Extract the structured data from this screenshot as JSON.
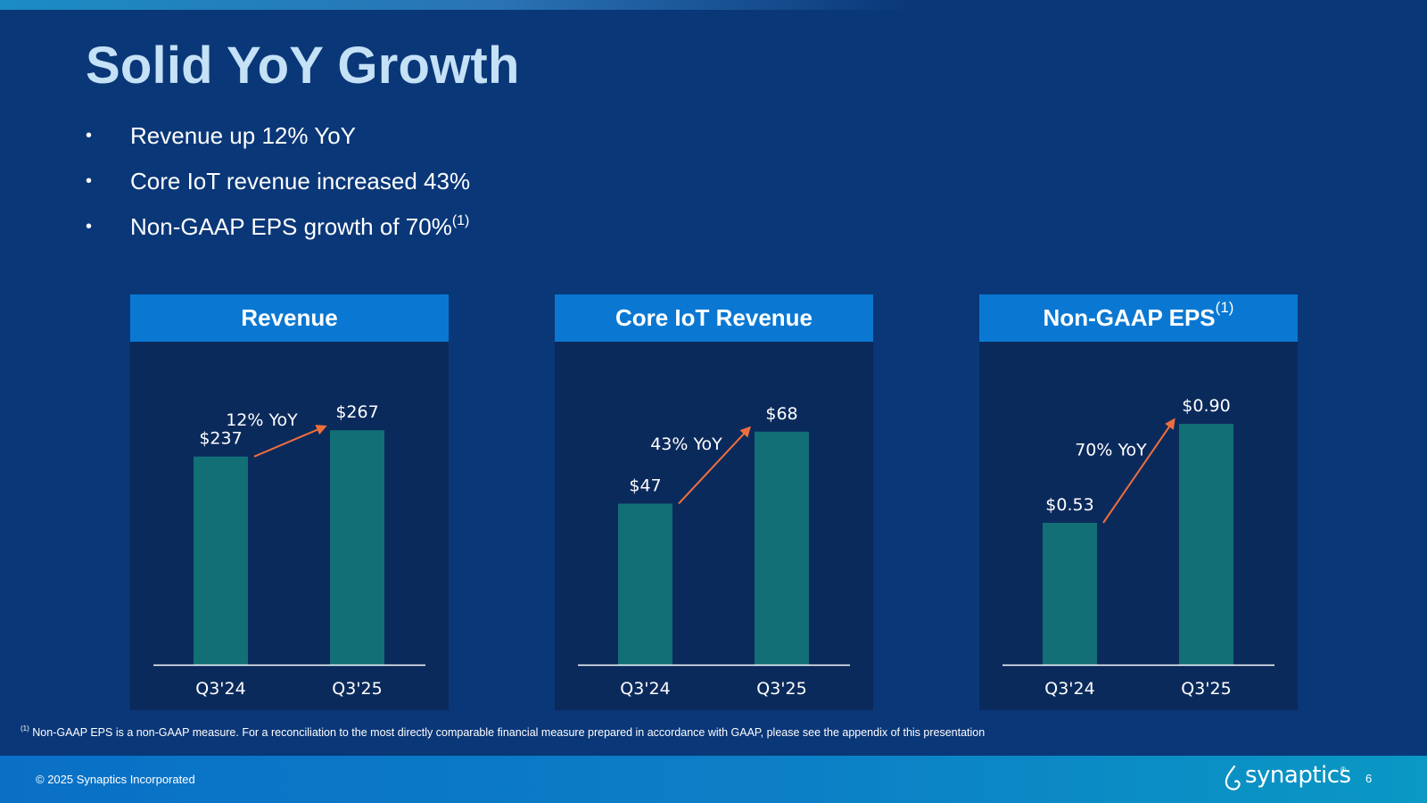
{
  "title": "Solid YoY Growth",
  "bullets": [
    {
      "text": "Revenue up 12% YoY",
      "sup": ""
    },
    {
      "text": "Core IoT revenue increased 43%",
      "sup": ""
    },
    {
      "text": "Non-GAAP EPS growth of 70%",
      "sup": "(1)"
    }
  ],
  "colors": {
    "background": "#0a3778",
    "panel": "#0b2a5c",
    "header": "#0a78d2",
    "bar": "#126f75",
    "arrow": "#ef6f3c",
    "title": "#c5e1f6"
  },
  "chart_data": [
    {
      "type": "bar",
      "title": "Revenue",
      "title_sup": "",
      "categories": [
        "Q3'24",
        "Q3'25"
      ],
      "values": [
        237,
        267
      ],
      "value_labels": [
        "$237",
        "$267"
      ],
      "ylim": [
        0,
        320
      ],
      "annotation": "12% YoY"
    },
    {
      "type": "bar",
      "title": "Core IoT Revenue",
      "title_sup": "",
      "categories": [
        "Q3'24",
        "Q3'25"
      ],
      "values": [
        47,
        68
      ],
      "value_labels": [
        "$47",
        "$68"
      ],
      "ylim": [
        0,
        82
      ],
      "annotation": "43% YoY"
    },
    {
      "type": "bar",
      "title": "Non-GAAP EPS",
      "title_sup": "(1)",
      "categories": [
        "Q3'24",
        "Q3'25"
      ],
      "values": [
        0.53,
        0.9
      ],
      "value_labels": [
        "$0.53",
        "$0.90"
      ],
      "ylim": [
        0,
        1.05
      ],
      "annotation": "70% YoY"
    }
  ],
  "footnote": {
    "sup": "(1)",
    "text": "Non-GAAP EPS is a non-GAAP measure. For a reconciliation to the most directly comparable financial measure prepared in accordance with GAAP, please see the appendix of this presentation"
  },
  "footer": {
    "copyright": "© 2025 Synaptics Incorporated",
    "logo_text": "synaptics",
    "logo_sup": "®",
    "page_number": "6",
    "logo_icon": "synaptics-drop-icon"
  }
}
